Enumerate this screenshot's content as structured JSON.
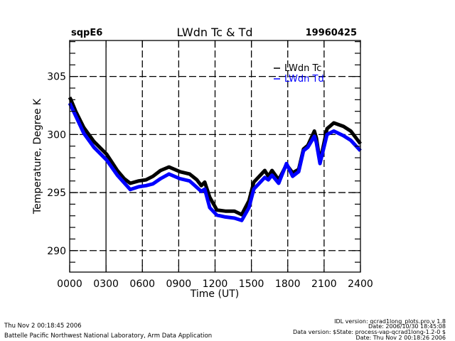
{
  "header": {
    "site": "sqpE6",
    "title": "LWdn Tc & Td",
    "date": "19960425"
  },
  "footer": {
    "left_lines": [
      "Thu Nov  2 00:18:45 2006",
      "Battelle Pacific Northwest National Laboratory, Arm Data Application"
    ],
    "right_lines": [
      "IDL version: qcrad1long_plots.pro,v 1.8",
      "Date: 2006/10/30 18:45:08",
      "Data version: $State: process-vap-qcrad1long-1.2-0 $",
      "Date: Thu Nov  2 00:18:26 2006"
    ]
  },
  "chart_data": {
    "type": "line",
    "title": "LWdn Tc & Td",
    "xlabel": "Time (UT)",
    "ylabel": "Temperature, Degree K",
    "xlim": [
      0,
      24
    ],
    "ylim": [
      288.15,
      308.1
    ],
    "xticks": [
      0,
      3,
      6,
      9,
      12,
      15,
      18,
      21,
      24
    ],
    "xtick_labels": [
      "0000",
      "0300",
      "0600",
      "0900",
      "1200",
      "1500",
      "1800",
      "2100",
      "2400"
    ],
    "yticks": [
      290,
      295,
      300,
      305
    ],
    "ytick_labels": [
      "290",
      "295",
      "300",
      "305"
    ],
    "yminor_step": 1,
    "grid": true,
    "legend": {
      "position": "top-right",
      "entries": [
        {
          "label": "LWdn Tc",
          "color": "#000000"
        },
        {
          "label": "LWdn Td",
          "color": "#0000ff"
        }
      ]
    },
    "series": [
      {
        "name": "LWdn Tc",
        "color": "#000000",
        "x": [
          0.0,
          0.1,
          0.5,
          1.17,
          2.0,
          3.05,
          3.5,
          3.93,
          4.5,
          5.0,
          5.7,
          6.3,
          6.87,
          7.5,
          8.2,
          9.1,
          9.9,
          10.5,
          10.86,
          11.15,
          11.56,
          12.15,
          12.85,
          13.6,
          14.2,
          14.8,
          15.2,
          16.1,
          16.4,
          16.7,
          17.25,
          17.9,
          18.4,
          18.9,
          19.3,
          19.66,
          20.2,
          20.36,
          20.66,
          21.24,
          21.8,
          22.6,
          23.2,
          24.0
        ],
        "y": [
          303.2,
          303.0,
          302.0,
          300.6,
          299.4,
          298.3,
          297.6,
          296.9,
          296.2,
          295.8,
          296.0,
          296.1,
          296.4,
          296.9,
          297.2,
          296.8,
          296.6,
          296.1,
          295.6,
          295.9,
          294.6,
          293.5,
          293.4,
          293.4,
          293.1,
          294.3,
          295.9,
          296.9,
          296.4,
          296.9,
          296.1,
          297.4,
          296.7,
          297.0,
          298.75,
          299.06,
          300.3,
          299.7,
          297.65,
          300.5,
          301.0,
          300.7,
          300.3,
          299.2
        ]
      },
      {
        "name": "LWdn Td",
        "color": "#0000ff",
        "x": [
          0.0,
          0.5,
          1.17,
          2.0,
          3.05,
          3.93,
          5.0,
          5.7,
          6.3,
          6.87,
          7.5,
          8.2,
          9.1,
          9.9,
          10.86,
          11.15,
          11.56,
          12.15,
          12.85,
          13.6,
          14.2,
          14.8,
          15.2,
          16.1,
          16.4,
          16.7,
          17.25,
          17.9,
          18.4,
          18.9,
          19.3,
          19.66,
          20.2,
          20.36,
          20.66,
          21.24,
          21.8,
          22.6,
          23.2,
          24.0
        ],
        "y": [
          302.7,
          301.6,
          300.1,
          298.9,
          297.8,
          296.5,
          295.26,
          295.5,
          295.6,
          295.75,
          296.2,
          296.6,
          296.2,
          296.0,
          295.1,
          295.3,
          293.7,
          293.06,
          292.9,
          292.8,
          292.6,
          293.7,
          295.3,
          296.3,
          296.1,
          296.5,
          295.8,
          297.5,
          296.4,
          296.8,
          298.6,
          298.9,
          299.85,
          299.3,
          297.5,
          300.0,
          300.3,
          299.9,
          299.5,
          298.6
        ]
      }
    ]
  }
}
